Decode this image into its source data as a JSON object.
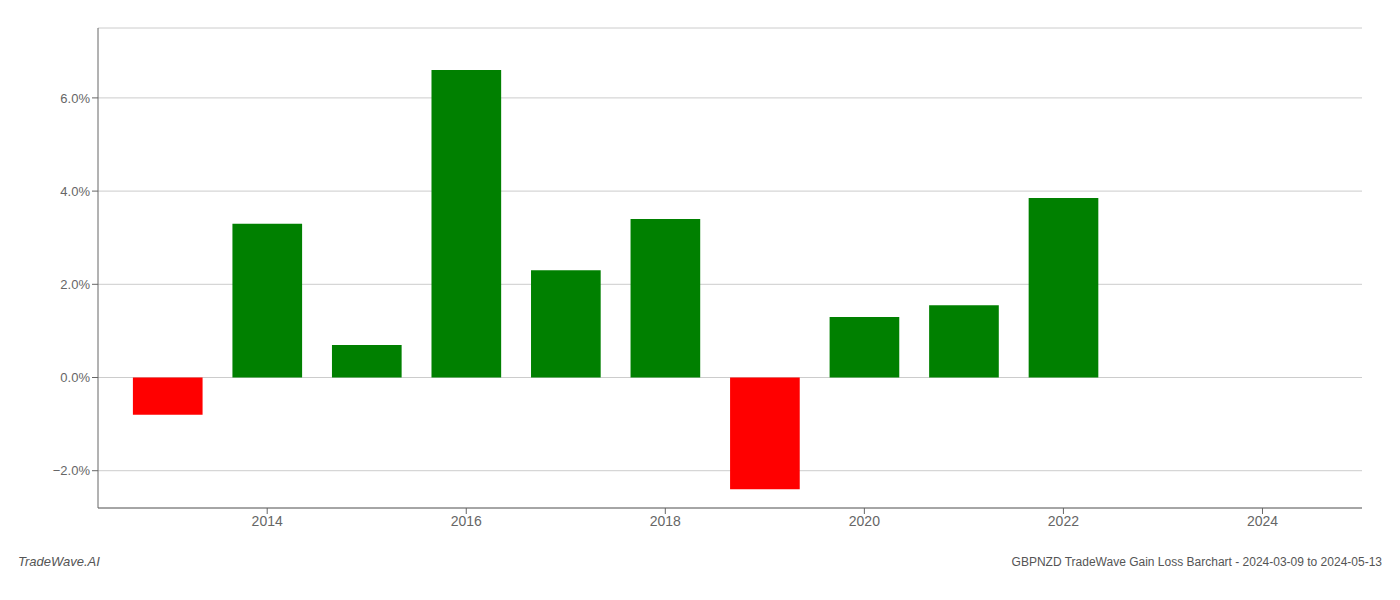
{
  "chart_data": {
    "type": "bar",
    "title": "GBPNZD TradeWave Gain Loss Barchart - 2024-03-09 to 2024-05-13",
    "annotations": [
      "TradeWave.AI"
    ],
    "x": [
      2013,
      2014,
      2015,
      2016,
      2017,
      2018,
      2019,
      2020,
      2021,
      2022
    ],
    "values": [
      -0.8,
      3.3,
      0.7,
      6.6,
      2.3,
      3.4,
      -2.4,
      1.3,
      1.55,
      3.85
    ],
    "colors": [
      "#ff0000",
      "#008000",
      "#008000",
      "#008000",
      "#008000",
      "#008000",
      "#ff0000",
      "#008000",
      "#008000",
      "#008000"
    ],
    "xlim": [
      2012.3,
      2025.0
    ],
    "xticks": [
      2014,
      2016,
      2018,
      2020,
      2022,
      2024
    ],
    "ylim": [
      -2.8,
      7.5
    ],
    "yticks": [
      {
        "value": -2.0,
        "label": "−2.0%"
      },
      {
        "value": 0.0,
        "label": "0.0%"
      },
      {
        "value": 2.0,
        "label": "2.0%"
      },
      {
        "value": 4.0,
        "label": "4.0%"
      },
      {
        "value": 6.0,
        "label": "6.0%"
      }
    ],
    "grid": true
  }
}
